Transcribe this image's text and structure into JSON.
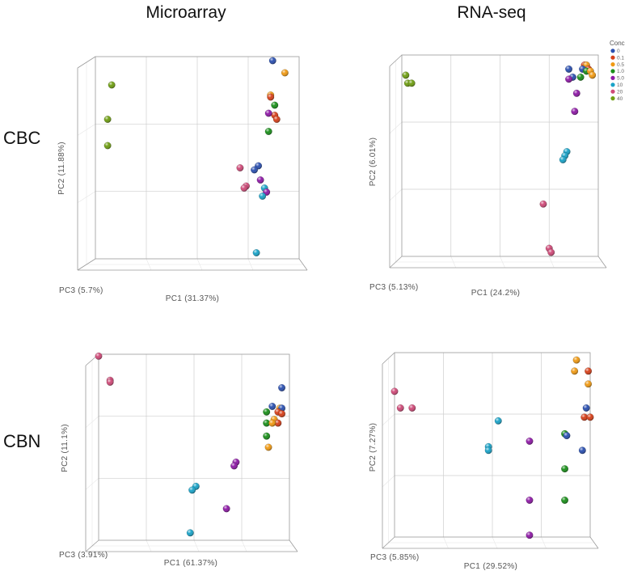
{
  "columns": [
    "Microarray",
    "RNA-seq"
  ],
  "rows": [
    "CBC",
    "CBN"
  ],
  "legend": {
    "title": "Conc",
    "items": [
      {
        "label": "0",
        "color": "#2b50b0"
      },
      {
        "label": "0.1",
        "color": "#d6401a"
      },
      {
        "label": "0.5",
        "color": "#f09a14"
      },
      {
        "label": "1.0",
        "color": "#1a8f1a"
      },
      {
        "label": "5.0",
        "color": "#8e1aa6"
      },
      {
        "label": "10",
        "color": "#1aa3c8"
      },
      {
        "label": "20",
        "color": "#cf4a78"
      },
      {
        "label": "40",
        "color": "#6f9e12"
      }
    ]
  },
  "chart_data": [
    {
      "type": "scatter",
      "id": "cbc-microarray",
      "row": "CBC",
      "column": "Microarray",
      "xlabel": "PC1 (31.37%)",
      "ylabel": "PC2 (11.88%)",
      "zlabel": "PC3 (5.7%)",
      "xlim": [
        0,
        1
      ],
      "ylim": [
        0,
        1
      ],
      "grid": true,
      "points": [
        {
          "x": 0.08,
          "y": 0.86,
          "conc": "40"
        },
        {
          "x": 0.06,
          "y": 0.69,
          "conc": "40"
        },
        {
          "x": 0.06,
          "y": 0.56,
          "conc": "40"
        },
        {
          "x": 0.87,
          "y": 0.98,
          "conc": "0"
        },
        {
          "x": 0.93,
          "y": 0.92,
          "conc": "0.5"
        },
        {
          "x": 0.86,
          "y": 0.81,
          "conc": "0.5"
        },
        {
          "x": 0.86,
          "y": 0.8,
          "conc": "0.1"
        },
        {
          "x": 0.88,
          "y": 0.76,
          "conc": "1.0"
        },
        {
          "x": 0.88,
          "y": 0.71,
          "conc": "0.1"
        },
        {
          "x": 0.89,
          "y": 0.69,
          "conc": "0.1"
        },
        {
          "x": 0.85,
          "y": 0.72,
          "conc": "5.0"
        },
        {
          "x": 0.85,
          "y": 0.63,
          "conc": "1.0"
        },
        {
          "x": 0.8,
          "y": 0.46,
          "conc": "0"
        },
        {
          "x": 0.78,
          "y": 0.44,
          "conc": "0"
        },
        {
          "x": 0.71,
          "y": 0.45,
          "conc": "20"
        },
        {
          "x": 0.81,
          "y": 0.39,
          "conc": "5.0"
        },
        {
          "x": 0.74,
          "y": 0.36,
          "conc": "20"
        },
        {
          "x": 0.73,
          "y": 0.35,
          "conc": "20"
        },
        {
          "x": 0.83,
          "y": 0.35,
          "conc": "10"
        },
        {
          "x": 0.84,
          "y": 0.33,
          "conc": "5.0"
        },
        {
          "x": 0.82,
          "y": 0.31,
          "conc": "10"
        },
        {
          "x": 0.79,
          "y": 0.03,
          "conc": "10"
        }
      ]
    },
    {
      "type": "scatter",
      "id": "cbc-rnaseq",
      "row": "CBC",
      "column": "RNA-seq",
      "xlabel": "PC1 (24.2%)",
      "ylabel": "PC2 (6.01%)",
      "zlabel": "PC3 (5.13%)",
      "xlim": [
        0,
        1
      ],
      "ylim": [
        0,
        1
      ],
      "grid": true,
      "points": [
        {
          "x": 0.02,
          "y": 0.9,
          "conc": "40"
        },
        {
          "x": 0.03,
          "y": 0.86,
          "conc": "40"
        },
        {
          "x": 0.05,
          "y": 0.86,
          "conc": "40"
        },
        {
          "x": 0.93,
          "y": 0.95,
          "conc": "0.1"
        },
        {
          "x": 0.94,
          "y": 0.95,
          "conc": "0.5"
        },
        {
          "x": 0.95,
          "y": 0.93,
          "conc": "0.1"
        },
        {
          "x": 0.92,
          "y": 0.93,
          "conc": "0"
        },
        {
          "x": 0.94,
          "y": 0.92,
          "conc": "1.0"
        },
        {
          "x": 0.96,
          "y": 0.92,
          "conc": "0.5"
        },
        {
          "x": 0.97,
          "y": 0.9,
          "conc": "0.5"
        },
        {
          "x": 0.85,
          "y": 0.93,
          "conc": "0"
        },
        {
          "x": 0.87,
          "y": 0.89,
          "conc": "0"
        },
        {
          "x": 0.91,
          "y": 0.89,
          "conc": "1.0"
        },
        {
          "x": 0.85,
          "y": 0.88,
          "conc": "5.0"
        },
        {
          "x": 0.89,
          "y": 0.81,
          "conc": "5.0"
        },
        {
          "x": 0.88,
          "y": 0.72,
          "conc": "5.0"
        },
        {
          "x": 0.84,
          "y": 0.52,
          "conc": "10"
        },
        {
          "x": 0.83,
          "y": 0.5,
          "conc": "10"
        },
        {
          "x": 0.82,
          "y": 0.48,
          "conc": "10"
        },
        {
          "x": 0.72,
          "y": 0.26,
          "conc": "20"
        },
        {
          "x": 0.75,
          "y": 0.04,
          "conc": "20"
        },
        {
          "x": 0.76,
          "y": 0.02,
          "conc": "20"
        }
      ]
    },
    {
      "type": "scatter",
      "id": "cbn-microarray",
      "row": "CBN",
      "column": "Microarray",
      "xlabel": "PC1 (61.37%)",
      "ylabel": "PC2 (11.1%)",
      "zlabel": "PC3 (3.91%)",
      "xlim": [
        0,
        1
      ],
      "ylim": [
        0,
        1
      ],
      "grid": true,
      "points": [
        {
          "x": 0.0,
          "y": 0.99,
          "conc": "20"
        },
        {
          "x": 0.06,
          "y": 0.86,
          "conc": "20"
        },
        {
          "x": 0.06,
          "y": 0.85,
          "conc": "20"
        },
        {
          "x": 0.96,
          "y": 0.82,
          "conc": "0"
        },
        {
          "x": 0.91,
          "y": 0.72,
          "conc": "0"
        },
        {
          "x": 0.95,
          "y": 0.71,
          "conc": "0.5"
        },
        {
          "x": 0.96,
          "y": 0.71,
          "conc": "0"
        },
        {
          "x": 0.94,
          "y": 0.69,
          "conc": "0.1"
        },
        {
          "x": 0.96,
          "y": 0.68,
          "conc": "0.1"
        },
        {
          "x": 0.88,
          "y": 0.69,
          "conc": "1.0"
        },
        {
          "x": 0.92,
          "y": 0.65,
          "conc": "0.5"
        },
        {
          "x": 0.88,
          "y": 0.63,
          "conc": "1.0"
        },
        {
          "x": 0.94,
          "y": 0.63,
          "conc": "0.1"
        },
        {
          "x": 0.91,
          "y": 0.63,
          "conc": "0.5"
        },
        {
          "x": 0.88,
          "y": 0.56,
          "conc": "1.0"
        },
        {
          "x": 0.89,
          "y": 0.5,
          "conc": "0.5"
        },
        {
          "x": 0.72,
          "y": 0.42,
          "conc": "5.0"
        },
        {
          "x": 0.71,
          "y": 0.4,
          "conc": "5.0"
        },
        {
          "x": 0.51,
          "y": 0.29,
          "conc": "10"
        },
        {
          "x": 0.49,
          "y": 0.27,
          "conc": "10"
        },
        {
          "x": 0.67,
          "y": 0.17,
          "conc": "5.0"
        },
        {
          "x": 0.48,
          "y": 0.04,
          "conc": "10"
        }
      ]
    },
    {
      "type": "scatter",
      "id": "cbn-rnaseq",
      "row": "CBN",
      "column": "RNA-seq",
      "xlabel": "PC1 (29.52%)",
      "ylabel": "PC2 (7.27%)",
      "zlabel": "PC3 (5.85%)",
      "xlim": [
        0,
        1
      ],
      "ylim": [
        0,
        1
      ],
      "grid": true,
      "points": [
        {
          "x": 0.0,
          "y": 0.79,
          "conc": "20"
        },
        {
          "x": 0.03,
          "y": 0.7,
          "conc": "20"
        },
        {
          "x": 0.09,
          "y": 0.7,
          "conc": "20"
        },
        {
          "x": 0.93,
          "y": 0.96,
          "conc": "0.5"
        },
        {
          "x": 0.92,
          "y": 0.9,
          "conc": "0.5"
        },
        {
          "x": 0.99,
          "y": 0.9,
          "conc": "0.1"
        },
        {
          "x": 0.99,
          "y": 0.83,
          "conc": "0.5"
        },
        {
          "x": 0.98,
          "y": 0.7,
          "conc": "0"
        },
        {
          "x": 0.97,
          "y": 0.65,
          "conc": "0.1"
        },
        {
          "x": 1.0,
          "y": 0.65,
          "conc": "0.1"
        },
        {
          "x": 0.53,
          "y": 0.63,
          "conc": "10"
        },
        {
          "x": 0.48,
          "y": 0.49,
          "conc": "10"
        },
        {
          "x": 0.48,
          "y": 0.47,
          "conc": "10"
        },
        {
          "x": 0.69,
          "y": 0.52,
          "conc": "5.0"
        },
        {
          "x": 0.87,
          "y": 0.56,
          "conc": "1.0"
        },
        {
          "x": 0.88,
          "y": 0.55,
          "conc": "0"
        },
        {
          "x": 0.96,
          "y": 0.47,
          "conc": "0"
        },
        {
          "x": 0.87,
          "y": 0.37,
          "conc": "1.0"
        },
        {
          "x": 0.69,
          "y": 0.2,
          "conc": "5.0"
        },
        {
          "x": 0.87,
          "y": 0.2,
          "conc": "1.0"
        },
        {
          "x": 0.69,
          "y": 0.01,
          "conc": "5.0"
        }
      ]
    }
  ]
}
